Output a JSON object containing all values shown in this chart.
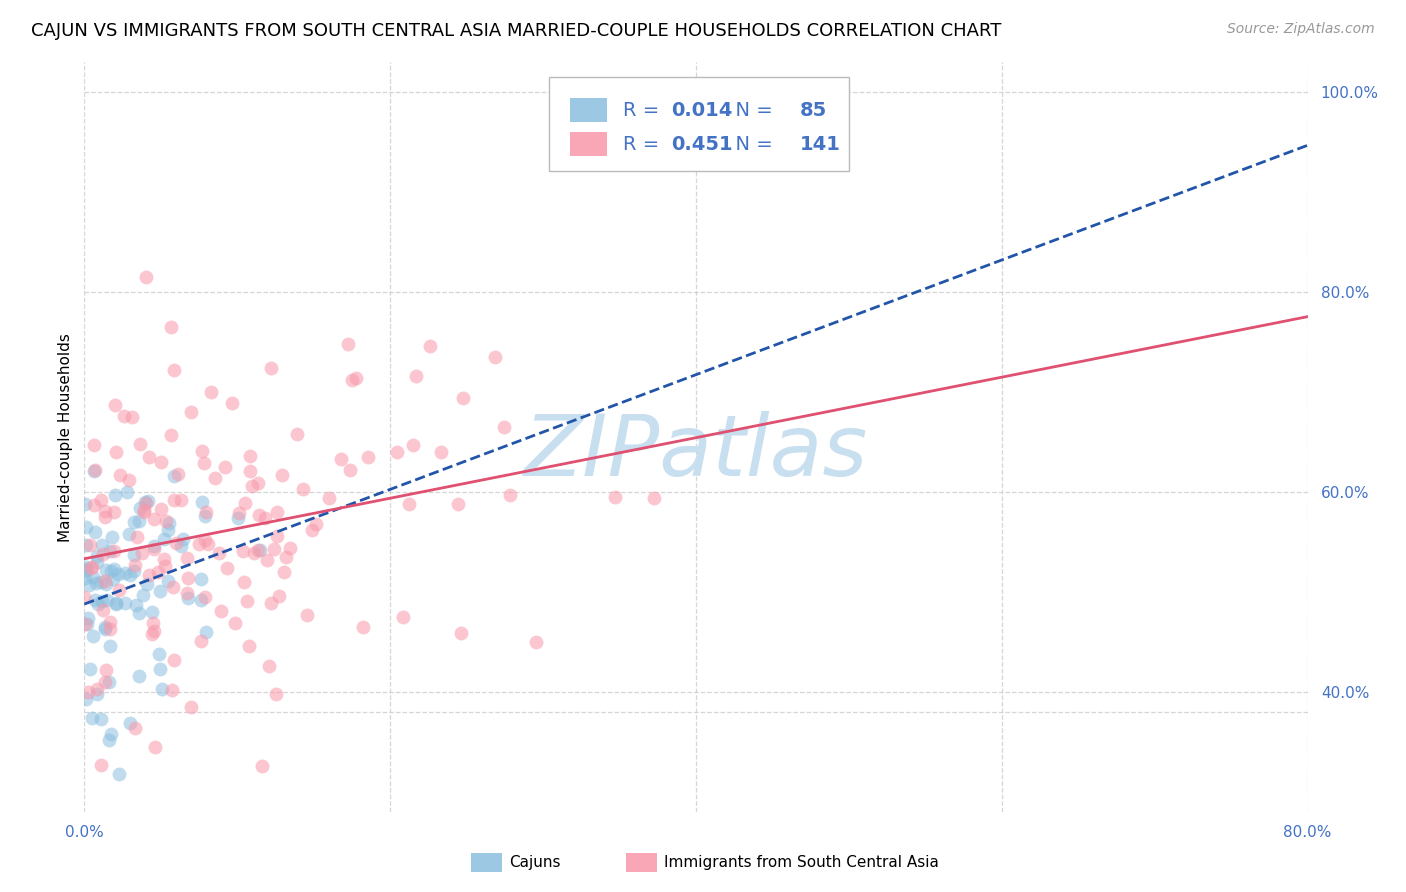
{
  "title": "CAJUN VS IMMIGRANTS FROM SOUTH CENTRAL ASIA MARRIED-COUPLE HOUSEHOLDS CORRELATION CHART",
  "source": "Source: ZipAtlas.com",
  "ylabel": "Married-couple Households",
  "x_min": 0.0,
  "x_max": 0.8,
  "y_min": 0.28,
  "y_max": 1.03,
  "y_tick_labels_right": [
    "40.0%",
    "60.0%",
    "80.0%",
    "100.0%"
  ],
  "y_tick_positions_right": [
    0.4,
    0.6,
    0.8,
    1.0
  ],
  "cajun_R": 0.014,
  "cajun_N": 85,
  "immigrants_R": 0.451,
  "immigrants_N": 141,
  "cajun_color": "#8bbfdf",
  "cajun_line_color": "#2255aa",
  "immigrants_color": "#f898aa",
  "immigrants_line_color": "#e05070",
  "legend_text_color": "#4472c4",
  "watermark_text": "ZIPatlas",
  "watermark_color": "#c8dff0",
  "title_fontsize": 13,
  "source_fontsize": 10,
  "axis_label_fontsize": 11,
  "tick_fontsize": 11,
  "legend_fontsize": 14,
  "scatter_alpha": 0.55,
  "scatter_size": 100,
  "background_color": "#ffffff",
  "grid_color": "#cccccc",
  "grid_alpha": 0.8
}
